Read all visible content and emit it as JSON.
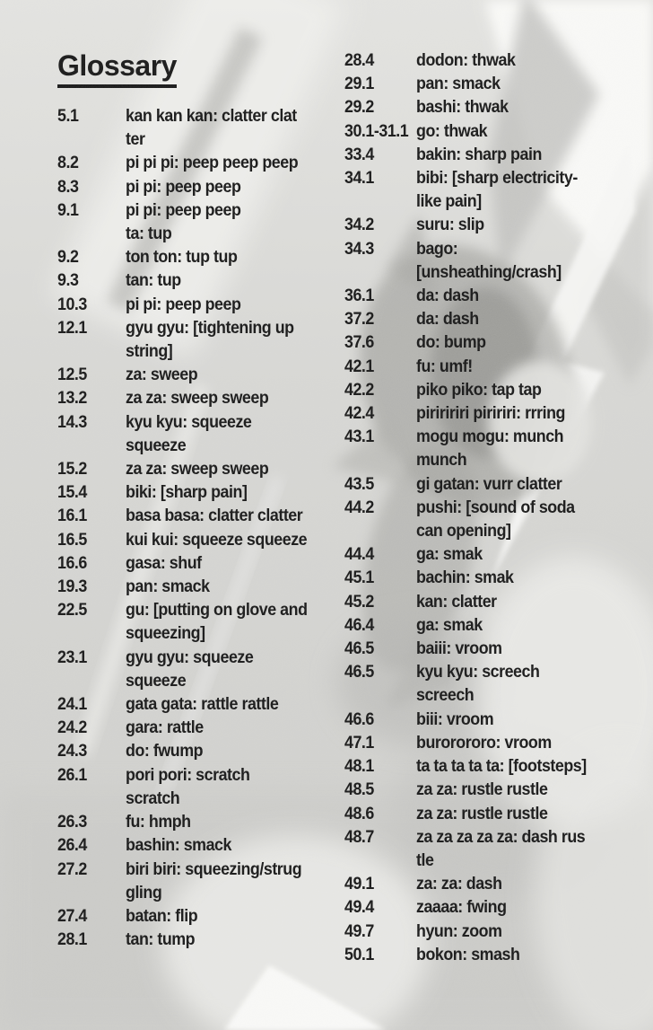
{
  "page": {
    "title": "Glossary",
    "colors": {
      "paper": "#d7d7d4",
      "ink": "#161616",
      "highlight": "#f6f6f4"
    },
    "columns": [
      {
        "entries": [
          {
            "ref": "5.1",
            "lines": [
              "kan kan kan: clatter clat",
              "ter"
            ]
          },
          {
            "ref": "8.2",
            "lines": [
              "pi pi pi: peep peep peep"
            ]
          },
          {
            "ref": "8.3",
            "lines": [
              "pi pi: peep peep"
            ]
          },
          {
            "ref": "9.1",
            "lines": [
              "pi pi: peep peep",
              "ta: tup"
            ]
          },
          {
            "ref": "9.2",
            "lines": [
              "ton ton: tup tup"
            ]
          },
          {
            "ref": "9.3",
            "lines": [
              "tan: tup"
            ]
          },
          {
            "ref": "10.3",
            "lines": [
              "pi pi: peep peep"
            ]
          },
          {
            "ref": "12.1",
            "lines": [
              "gyu gyu: [tightening up",
              "string]"
            ]
          },
          {
            "ref": "12.5",
            "lines": [
              "za: sweep"
            ]
          },
          {
            "ref": "13.2",
            "lines": [
              "za za: sweep sweep"
            ]
          },
          {
            "ref": "14.3",
            "lines": [
              "kyu kyu: squeeze",
              "squeeze"
            ]
          },
          {
            "ref": "15.2",
            "lines": [
              "za za: sweep sweep"
            ]
          },
          {
            "ref": "15.4",
            "lines": [
              "biki: [sharp pain]"
            ]
          },
          {
            "ref": "16.1",
            "lines": [
              "basa basa: clatter clatter"
            ]
          },
          {
            "ref": "16.5",
            "lines": [
              "kui kui: squeeze squeeze"
            ]
          },
          {
            "ref": "16.6",
            "lines": [
              "gasa: shuf"
            ]
          },
          {
            "ref": "19.3",
            "lines": [
              "pan: smack"
            ]
          },
          {
            "ref": "22.5",
            "lines": [
              "gu: [putting on glove and",
              "squeezing]"
            ]
          },
          {
            "ref": "23.1",
            "lines": [
              "gyu gyu: squeeze",
              "squeeze"
            ]
          },
          {
            "ref": "24.1",
            "lines": [
              "gata gata: rattle rattle"
            ]
          },
          {
            "ref": "24.2",
            "lines": [
              "gara: rattle"
            ]
          },
          {
            "ref": "24.3",
            "lines": [
              "do: fwump"
            ]
          },
          {
            "ref": "26.1",
            "lines": [
              "pori pori: scratch",
              "scratch"
            ]
          },
          {
            "ref": "26.3",
            "lines": [
              "fu: hmph"
            ]
          },
          {
            "ref": "26.4",
            "lines": [
              "bashin: smack"
            ]
          },
          {
            "ref": "27.2",
            "lines": [
              "biri biri: squeezing/strug",
              "gling"
            ]
          },
          {
            "ref": "27.4",
            "lines": [
              "batan: flip"
            ]
          },
          {
            "ref": "28.1",
            "lines": [
              "tan: tump"
            ]
          }
        ]
      },
      {
        "entries": [
          {
            "ref": "28.4",
            "lines": [
              "dodon: thwak"
            ]
          },
          {
            "ref": "29.1",
            "lines": [
              "pan: smack"
            ]
          },
          {
            "ref": "29.2",
            "lines": [
              "bashi: thwak"
            ]
          },
          {
            "ref": "30.1-31.1",
            "lines": [
              "go: thwak"
            ]
          },
          {
            "ref": "33.4",
            "lines": [
              "bakin: sharp pain"
            ]
          },
          {
            "ref": "34.1",
            "lines": [
              "bibi: [sharp electricity-",
              "like pain]"
            ]
          },
          {
            "ref": "34.2",
            "lines": [
              "suru: slip"
            ]
          },
          {
            "ref": "34.3",
            "lines": [
              "bago:",
              "[unsheathing/crash]"
            ]
          },
          {
            "ref": "36.1",
            "lines": [
              "da: dash"
            ]
          },
          {
            "ref": "37.2",
            "lines": [
              "da: dash"
            ]
          },
          {
            "ref": "37.6",
            "lines": [
              "do: bump"
            ]
          },
          {
            "ref": "42.1",
            "lines": [
              "fu: umf!"
            ]
          },
          {
            "ref": "42.2",
            "lines": [
              "piko piko: tap tap"
            ]
          },
          {
            "ref": "42.4",
            "lines": [
              "piriririri piririri: rrring"
            ]
          },
          {
            "ref": "43.1",
            "lines": [
              "mogu mogu: munch",
              "munch"
            ]
          },
          {
            "ref": "43.5",
            "lines": [
              "gi gatan: vurr clatter"
            ]
          },
          {
            "ref": "44.2",
            "lines": [
              "pushi: [sound of soda",
              "can opening]"
            ]
          },
          {
            "ref": "44.4",
            "lines": [
              "ga: smak"
            ]
          },
          {
            "ref": "45.1",
            "lines": [
              "bachin: smak"
            ]
          },
          {
            "ref": "45.2",
            "lines": [
              "kan: clatter"
            ]
          },
          {
            "ref": "46.4",
            "lines": [
              "ga: smak"
            ]
          },
          {
            "ref": "46.5",
            "lines": [
              "baiii: vroom"
            ]
          },
          {
            "ref": "46.5",
            "lines": [
              "kyu kyu: screech",
              "screech"
            ]
          },
          {
            "ref": "46.6",
            "lines": [
              "biii: vroom"
            ]
          },
          {
            "ref": "47.1",
            "lines": [
              "burorororo: vroom"
            ]
          },
          {
            "ref": "48.1",
            "lines": [
              "ta ta ta ta ta: [footsteps]"
            ]
          },
          {
            "ref": "48.5",
            "lines": [
              "za za: rustle rustle"
            ]
          },
          {
            "ref": "48.6",
            "lines": [
              "za za: rustle rustle"
            ]
          },
          {
            "ref": "48.7",
            "lines": [
              "za za za za za: dash rus",
              "tle"
            ]
          },
          {
            "ref": "49.1",
            "lines": [
              "za: za: dash"
            ]
          },
          {
            "ref": "49.4",
            "lines": [
              "zaaaa: fwing"
            ]
          },
          {
            "ref": "49.7",
            "lines": [
              "hyun: zoom"
            ]
          },
          {
            "ref": "50.1",
            "lines": [
              "bokon: smash"
            ]
          }
        ]
      }
    ]
  }
}
